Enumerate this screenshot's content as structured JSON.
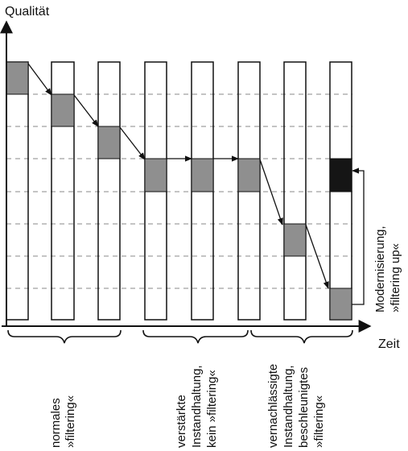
{
  "axes": {
    "y_label": "Qualität",
    "x_label": "Zeit"
  },
  "annotation": {
    "line1": "Modernisierung,",
    "line2": "»filtering up«"
  },
  "groups": [
    {
      "line1": "normales",
      "line2": "»filtering«",
      "line3": ""
    },
    {
      "line1": "verstärkte",
      "line2": "Instandhaltung,",
      "line3": "kein »filtering«"
    },
    {
      "line1": "vernachlässigte",
      "line2": "Instandhaltung,",
      "line3": "beschleunigtes",
      "line4": "»filtering«"
    }
  ],
  "colors": {
    "filled": "#8f8f8f",
    "modernized": "#151515",
    "line": "#111111",
    "dashed": "#888888"
  }
}
